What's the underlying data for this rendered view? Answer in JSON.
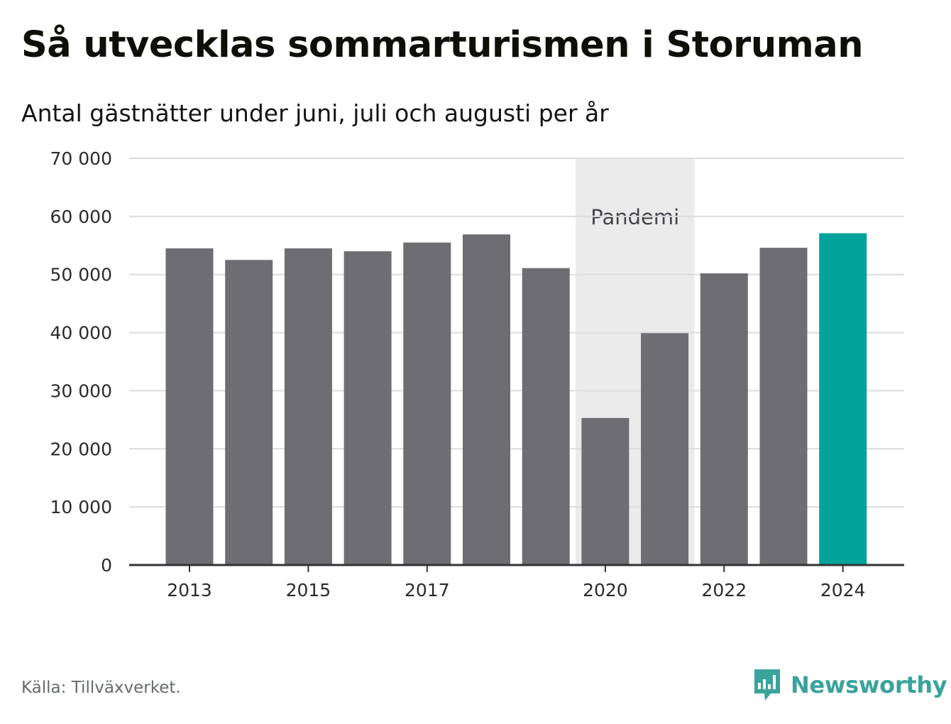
{
  "title": "Så utvecklas sommarturismen i Storuman",
  "subtitle": "Antal gästnätter under juni, juli och augusti per år",
  "source": "Källa: Tillväxverket.",
  "brand": {
    "name": "Newsworthy",
    "icon": "newsworthy-logo-icon"
  },
  "colors": {
    "bar": "#6e6d72",
    "highlight": "#00a39a",
    "shade": "#ebebeb",
    "grid": "#dcdcdc",
    "axis": "#333333"
  },
  "chart_data": {
    "type": "bar",
    "categories": [
      "2013",
      "2014",
      "2015",
      "2016",
      "2017",
      "2018",
      "2019",
      "2020",
      "2021",
      "2022",
      "2023",
      "2024"
    ],
    "values": [
      54500,
      52500,
      54500,
      54000,
      55500,
      56900,
      51100,
      25300,
      39900,
      50200,
      54600,
      57100
    ],
    "highlight_category": "2024",
    "x_tick_labels": [
      "2013",
      "2015",
      "2017",
      "2020",
      "2022",
      "2024"
    ],
    "y_ticks": [
      0,
      10000,
      20000,
      30000,
      40000,
      50000,
      60000,
      70000
    ],
    "y_tick_labels": [
      "0",
      "10 000",
      "20 000",
      "30 000",
      "40 000",
      "50 000",
      "60 000",
      "70 000"
    ],
    "ylim": [
      0,
      70000
    ],
    "grid": true,
    "annotation": {
      "label": "Pandemi",
      "from": "2020",
      "to": "2021"
    }
  }
}
